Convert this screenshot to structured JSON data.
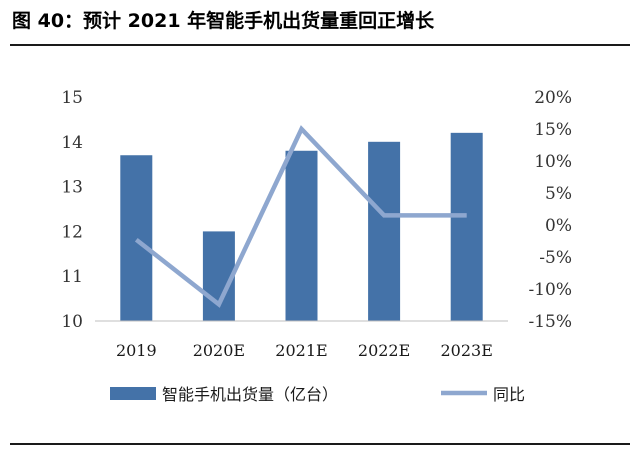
{
  "title": "图 40：预计 2021 年智能手机出货量重回正增长",
  "colors": {
    "bar": "#4472a8",
    "line": "#8ea7cf",
    "axis": "#bfbfbf"
  },
  "chart_data": {
    "type": "bar",
    "categories": [
      "2019",
      "2020E",
      "2021E",
      "2022E",
      "2023E"
    ],
    "series": [
      {
        "name": "智能手机出货量（亿台）",
        "type": "bar",
        "axis": "left",
        "values": [
          13.7,
          12.0,
          13.8,
          14.0,
          14.2
        ]
      },
      {
        "name": "同比",
        "type": "line",
        "axis": "right",
        "values": [
          -2.3,
          -12.4,
          15.0,
          1.5,
          1.5
        ]
      }
    ],
    "y_left": {
      "min": 10,
      "max": 15,
      "ticks": [
        "10",
        "11",
        "12",
        "13",
        "14",
        "15"
      ]
    },
    "y_right": {
      "min": -15,
      "max": 20,
      "ticks": [
        "-15%",
        "-10%",
        "-5%",
        "0%",
        "5%",
        "10%",
        "15%",
        "20%"
      ]
    },
    "grid": false,
    "legend": "bottom"
  }
}
